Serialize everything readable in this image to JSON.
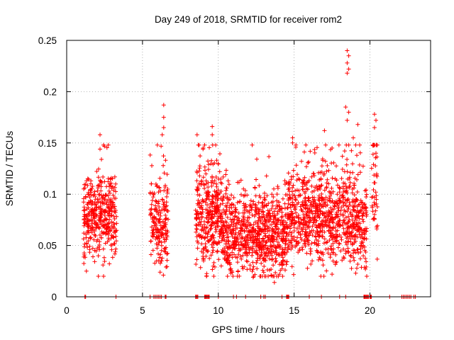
{
  "chart_data": {
    "type": "scatter",
    "title": "Day 249 of 2018, SRMTID for receiver rom2",
    "xlabel": "GPS time / hours",
    "ylabel": "SRMTID / TECUs",
    "xlim": [
      0,
      24
    ],
    "ylim": [
      0,
      0.25
    ],
    "xticks": [
      0,
      5,
      10,
      15,
      20
    ],
    "yticks": [
      0,
      0.05,
      0.1,
      0.15,
      0.2,
      0.25
    ],
    "xtick_labels": [
      "0",
      "5",
      "10",
      "15",
      "20"
    ],
    "ytick_labels": [
      "0",
      "0.05",
      "0.1",
      "0.15",
      "0.2",
      "0.25"
    ],
    "grid": true,
    "marker": "+",
    "series_color": "#ff0000",
    "point_generation": "approximate reconstruction of a dense scatter (thousands of points); clusters below define the observed groups",
    "clusters": [
      {
        "x_range": [
          1.1,
          3.3
        ],
        "y_center": 0.078,
        "y_spread": 0.02,
        "count": 380
      },
      {
        "x_range": [
          5.5,
          6.7
        ],
        "y_center": 0.07,
        "y_spread": 0.022,
        "count": 190
      },
      {
        "x_range": [
          8.5,
          10.2
        ],
        "y_center": 0.078,
        "y_spread": 0.025,
        "count": 330
      },
      {
        "x_range": [
          10.2,
          12.6
        ],
        "y_center": 0.062,
        "y_spread": 0.02,
        "count": 420
      },
      {
        "x_range": [
          12.6,
          14.6
        ],
        "y_center": 0.058,
        "y_spread": 0.02,
        "count": 380
      },
      {
        "x_range": [
          14.6,
          17.2
        ],
        "y_center": 0.078,
        "y_spread": 0.022,
        "count": 450
      },
      {
        "x_range": [
          17.2,
          19.8
        ],
        "y_center": 0.076,
        "y_spread": 0.024,
        "count": 430
      },
      {
        "x_range": [
          20.1,
          20.5
        ],
        "y_center": 0.105,
        "y_spread": 0.03,
        "count": 45
      }
    ],
    "outliers": [
      {
        "x": 2.2,
        "y": 0.158
      },
      {
        "x": 2.2,
        "y": 0.144
      },
      {
        "x": 6.4,
        "y": 0.187
      },
      {
        "x": 6.4,
        "y": 0.175
      },
      {
        "x": 6.4,
        "y": 0.165
      },
      {
        "x": 6.3,
        "y": 0.158
      },
      {
        "x": 8.6,
        "y": 0.158
      },
      {
        "x": 9.0,
        "y": 0.145
      },
      {
        "x": 9.6,
        "y": 0.166
      },
      {
        "x": 9.6,
        "y": 0.158
      },
      {
        "x": 14.9,
        "y": 0.155
      },
      {
        "x": 14.9,
        "y": 0.15
      },
      {
        "x": 17.0,
        "y": 0.162
      },
      {
        "x": 17.5,
        "y": 0.145
      },
      {
        "x": 18.5,
        "y": 0.24
      },
      {
        "x": 18.6,
        "y": 0.235
      },
      {
        "x": 18.5,
        "y": 0.228
      },
      {
        "x": 18.6,
        "y": 0.222
      },
      {
        "x": 18.5,
        "y": 0.218
      },
      {
        "x": 18.4,
        "y": 0.185
      },
      {
        "x": 18.6,
        "y": 0.18
      },
      {
        "x": 18.5,
        "y": 0.172
      },
      {
        "x": 18.9,
        "y": 0.155
      },
      {
        "x": 19.2,
        "y": 0.168
      },
      {
        "x": 20.3,
        "y": 0.178
      },
      {
        "x": 20.4,
        "y": 0.172
      },
      {
        "x": 20.3,
        "y": 0.165
      },
      {
        "x": 20.4,
        "y": 0.14
      },
      {
        "x": 13.7,
        "y": 0.014
      },
      {
        "x": 12.3,
        "y": 0.019
      },
      {
        "x": 17.5,
        "y": 0.022
      },
      {
        "x": 19.7,
        "y": 0.027
      },
      {
        "x": 1.3,
        "y": 0.025
      }
    ],
    "zero_points_x": [
      1.2,
      1.25,
      3.25,
      5.5,
      5.75,
      5.85,
      5.95,
      6.05,
      6.15,
      6.25,
      6.5,
      6.55,
      8.5,
      8.55,
      8.6,
      8.65,
      9.1,
      9.15,
      9.2,
      9.25,
      9.3,
      9.35,
      9.4,
      10.0,
      11.0,
      11.2,
      11.8,
      12.8,
      13.0,
      13.1,
      14.2,
      14.5,
      14.55,
      14.6,
      14.65,
      16.0,
      16.8,
      18.0,
      18.4,
      19.6,
      19.65,
      19.7,
      19.75,
      19.8,
      19.85,
      19.9,
      20.0,
      20.05,
      20.1,
      21.3,
      22.1,
      22.2,
      22.3,
      22.4,
      22.5,
      22.6,
      22.7,
      22.9,
      23.0
    ]
  }
}
